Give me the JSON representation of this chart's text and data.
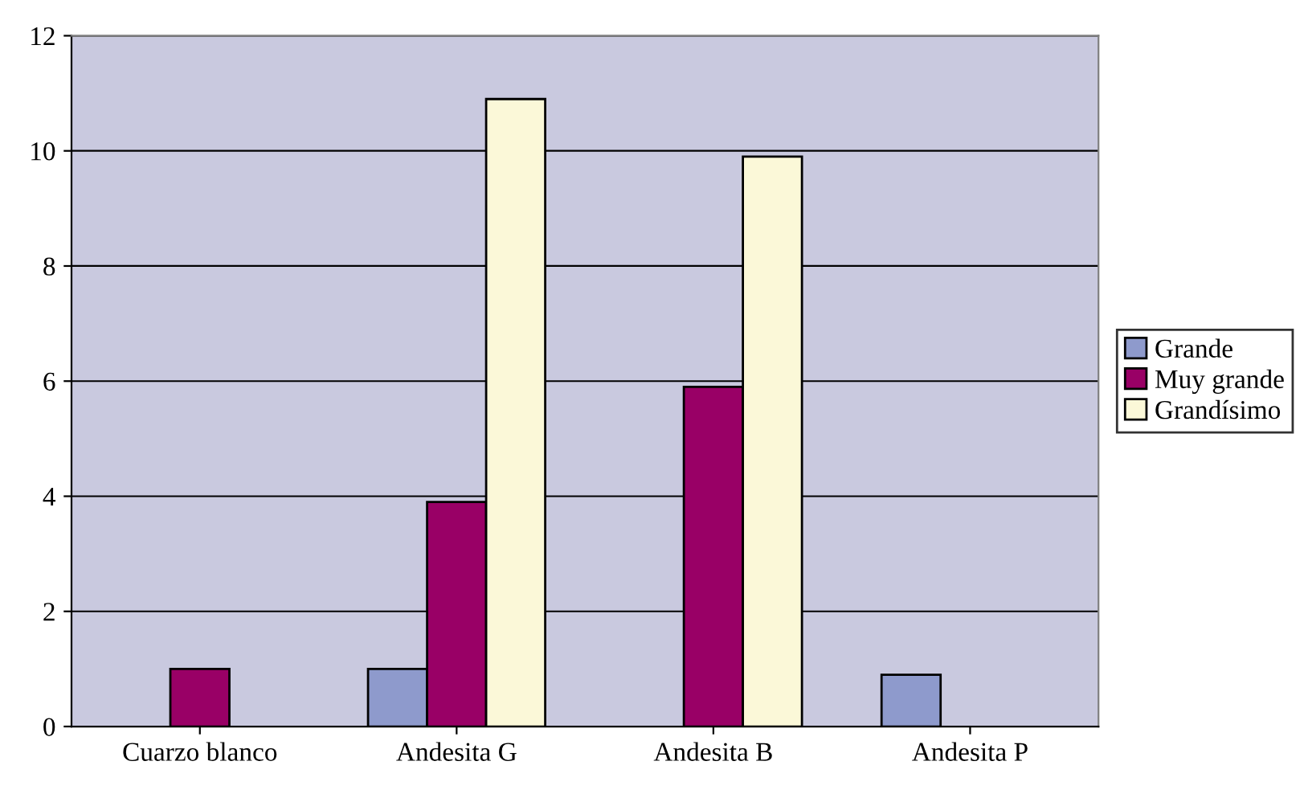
{
  "chart_data": {
    "type": "bar",
    "categories": [
      "Cuarzo blanco",
      "Andesita G",
      "Andesita B",
      "Andesita P"
    ],
    "series": [
      {
        "name": "Grande",
        "color": "#8e9acc",
        "values": [
          null,
          1,
          null,
          0.9
        ]
      },
      {
        "name": "Muy grande",
        "color": "#990066",
        "values": [
          1,
          3.9,
          5.9,
          null
        ]
      },
      {
        "name": "Grandísimo",
        "color": "#fbf8d8",
        "values": [
          null,
          10.9,
          9.9,
          null
        ]
      }
    ],
    "ylim": [
      0,
      12
    ],
    "yticks": [
      0,
      2,
      4,
      6,
      8,
      10,
      12
    ],
    "grid": "y",
    "legend": "right"
  }
}
